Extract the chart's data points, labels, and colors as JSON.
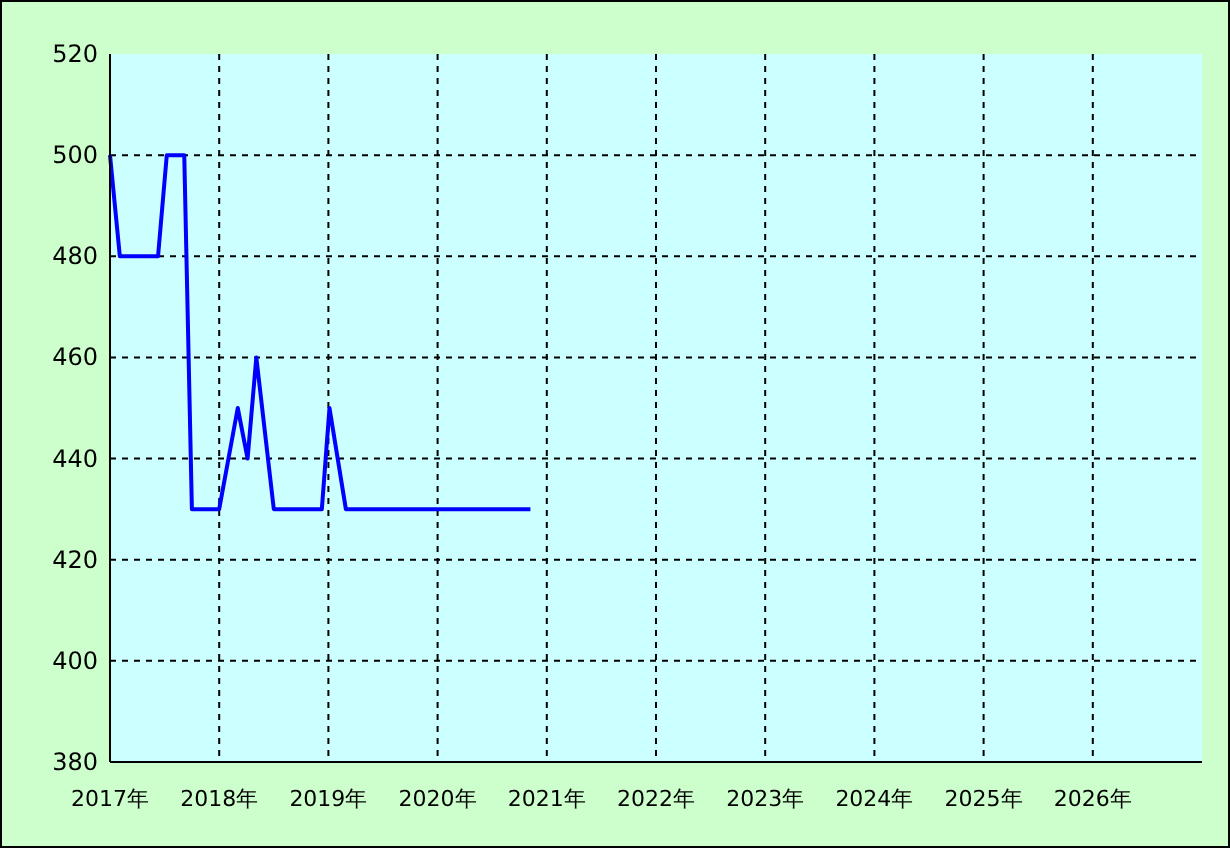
{
  "chart_data": {
    "type": "line",
    "x": [
      2017.0,
      2017.09,
      2017.44,
      2017.52,
      2017.68,
      2017.75,
      2018.0,
      2018.17,
      2018.26,
      2018.34,
      2018.5,
      2018.94,
      2019.01,
      2019.16,
      2020.85
    ],
    "series": [
      {
        "color": "#0000ff",
        "values": [
          500,
          480,
          480,
          500,
          500,
          430,
          430,
          450,
          440,
          460,
          430,
          430,
          450,
          430,
          430
        ]
      }
    ],
    "xlim": [
      2017,
      2027
    ],
    "xticks": [
      {
        "value": 2017,
        "label": "2017年"
      },
      {
        "value": 2018,
        "label": "2018年"
      },
      {
        "value": 2019,
        "label": "2019年"
      },
      {
        "value": 2020,
        "label": "2020年"
      },
      {
        "value": 2021,
        "label": "2021年"
      },
      {
        "value": 2022,
        "label": "2022年"
      },
      {
        "value": 2023,
        "label": "2023年"
      },
      {
        "value": 2024,
        "label": "2024年"
      },
      {
        "value": 2025,
        "label": "2025年"
      },
      {
        "value": 2026,
        "label": "2026年"
      }
    ],
    "ylim": [
      380,
      520
    ],
    "yticks": [
      380,
      400,
      420,
      440,
      460,
      480,
      500,
      520
    ],
    "grid": true,
    "line_style": "solid"
  }
}
